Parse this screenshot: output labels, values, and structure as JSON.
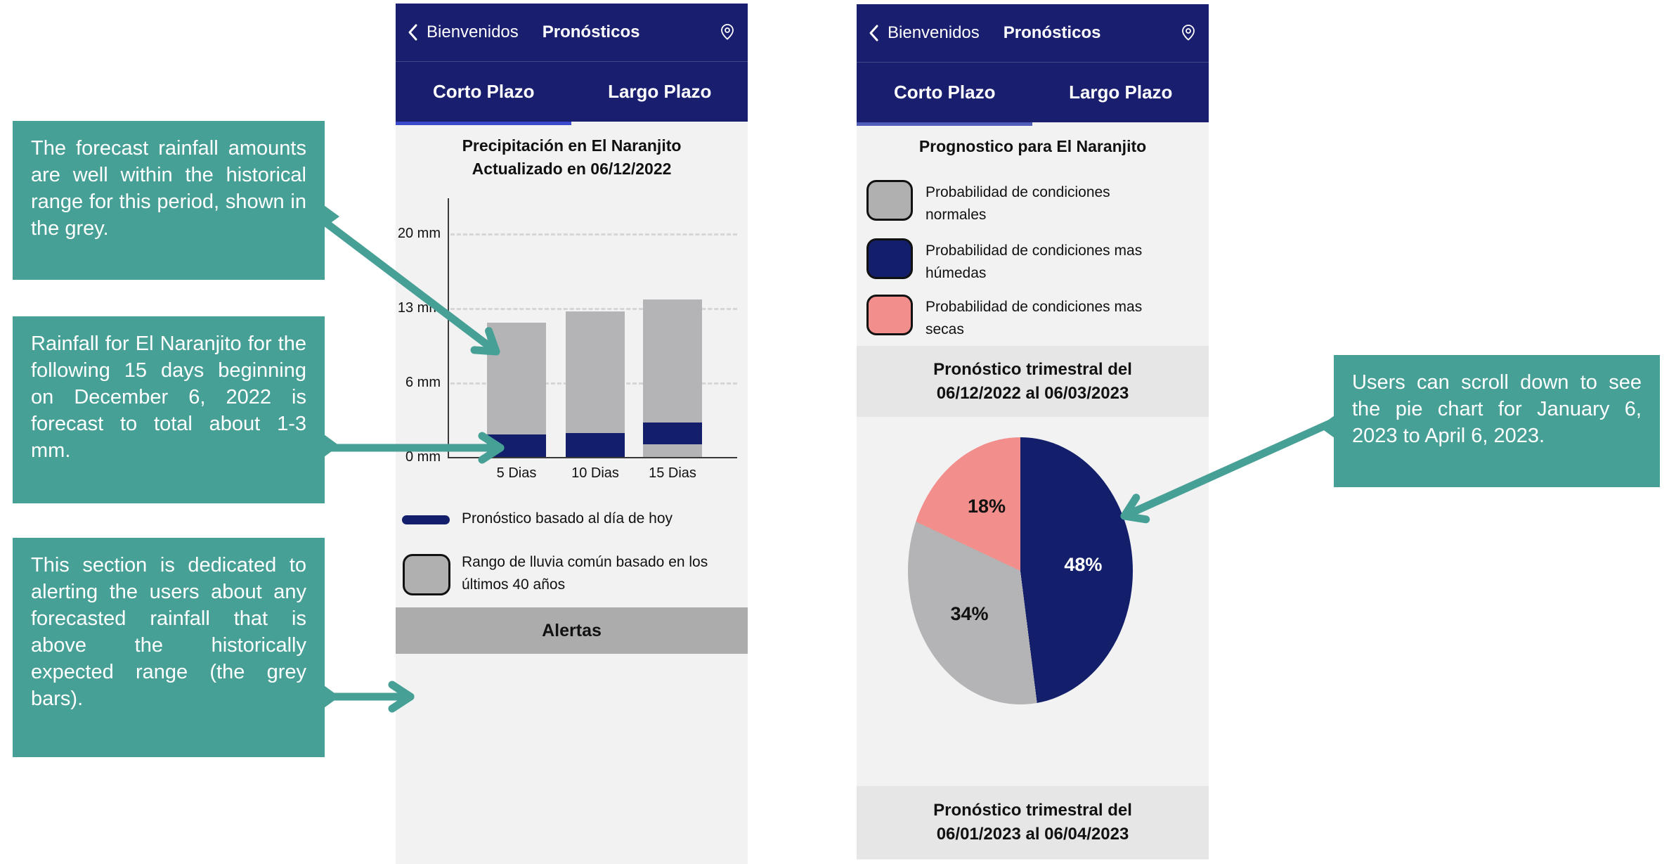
{
  "colors": {
    "teal_annotation": "#46a096",
    "navy_header": "#191f6e",
    "navy_data": "#141f6b",
    "grey_range": "#b4b4b6",
    "grey_swatch": "#b0b0b0",
    "pink_dry": "#f28e8b",
    "alert_band_grey": "#acacac",
    "section_band_grey": "#e6e6e6",
    "screen_bg": "#f2f2f2",
    "tab_underline_left_phone": "#3b49cc",
    "tab_underline_right_phone": "#515dbb"
  },
  "icons": {
    "back": "chevron-left-icon",
    "location": "location-pin-icon"
  },
  "annotations": {
    "note_historical_range": "The forecast rainfall amounts are well within the historical range for this period, shown in the grey.",
    "note_forecast_total": "Rainfall for El Naranjito for the following 15 days beginning on December 6, 2022 is forecast to total about 1-3 mm.",
    "note_alerts_section": "This section is dedicated to alerting the users about any forecasted rainfall that is above the historically expected range (the grey bars).",
    "note_scroll_pie": "Users can scroll down to see the pie chart for January 6, 2023 to April 6, 2023."
  },
  "phone1": {
    "nav": {
      "back_label": "Bienvenidos",
      "title": "Pronósticos"
    },
    "tabs": {
      "left": "Corto Plazo",
      "right": "Largo Plazo",
      "active": "Corto Plazo"
    },
    "title_line1": "Precipitación en El Naranjito",
    "title_line2": "Actualizado en 06/12/2022",
    "legend": {
      "forecast_label": "Pronóstico basado al día de hoy",
      "range_label_line1": "Rango de lluvia común basado en los",
      "range_label_line2": "últimos 40 años"
    },
    "alerts_label": "Alertas"
  },
  "phone2": {
    "nav": {
      "back_label": "Bienvenidos",
      "title": "Pronósticos"
    },
    "tabs": {
      "left": "Corto Plazo",
      "right": "Largo Plazo",
      "active": "Corto Plazo"
    },
    "title": "Prognostico para El Naranjito",
    "legend": [
      {
        "label_line1": "Probabilidad de condiciones",
        "label_line2": "normales",
        "color": "#b0b0b0"
      },
      {
        "label_line1": "Probabilidad de condiciones mas",
        "label_line2": "húmedas",
        "color": "#141f6b"
      },
      {
        "label_line1": "Probabilidad de condiciones mas",
        "label_line2": "secas",
        "color": "#f28e8b"
      }
    ],
    "band_top": {
      "line1": "Pronóstico trimestral del",
      "line2": "06/12/2022 al 06/03/2023"
    },
    "band_bottom": {
      "line1": "Pronóstico trimestral del",
      "line2": "06/01/2023 al 06/04/2023"
    }
  },
  "chart_data": [
    {
      "type": "bar",
      "title": "Precipitación en El Naranjito",
      "subtitle": "Actualizado en 06/12/2022",
      "categories": [
        "5 Dias",
        "10 Dias",
        "15 Dias"
      ],
      "yticks": [
        0,
        6,
        13,
        20
      ],
      "ytick_labels": [
        "0 mm",
        "6 mm",
        "13 mm",
        "20 mm"
      ],
      "ylim": [
        0,
        24
      ],
      "grid": "horizontal-dashed",
      "legend_position": "below",
      "series": [
        {
          "name": "Rango de lluvia común basado en los últimos 40 años",
          "role": "historical-range",
          "color": "#b4b4b6",
          "ranges_mm": [
            [
              0,
              11.6
            ],
            [
              0,
              12.7
            ],
            [
              0,
              13.8
            ]
          ]
        },
        {
          "name": "Pronóstico basado al día de hoy",
          "role": "forecast",
          "color": "#141f6b",
          "ranges_mm": [
            [
              0,
              1.8
            ],
            [
              0,
              1.9
            ],
            [
              1,
              2.8
            ]
          ]
        }
      ]
    },
    {
      "type": "pie",
      "title": "Pronóstico trimestral del 06/12/2022 al 06/03/2023",
      "labels": [
        "Probabilidad de condiciones mas húmedas",
        "Probabilidad de condiciones normales",
        "Probabilidad de condiciones mas secas"
      ],
      "values": [
        48,
        34,
        18
      ],
      "colors": [
        "#141f6b",
        "#b4b4b6",
        "#f28e8b"
      ],
      "data_labels": [
        "48%",
        "34%",
        "18%"
      ],
      "label_colors": [
        "#ffffff",
        "#111111",
        "#111111"
      ],
      "start_angle": "12-oclock",
      "direction": "clockwise"
    }
  ]
}
